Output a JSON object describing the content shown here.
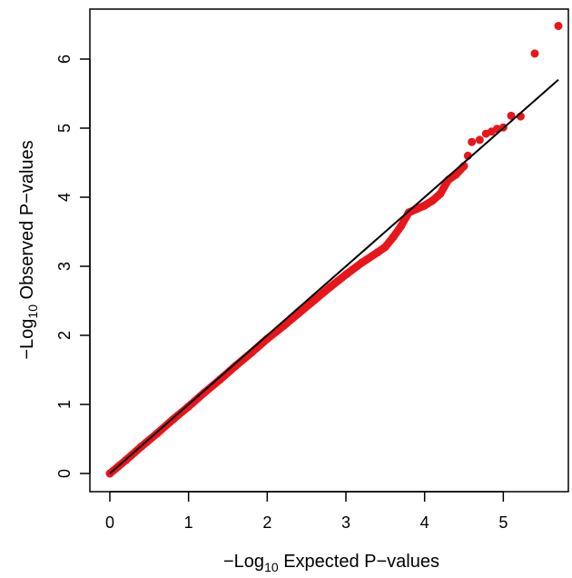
{
  "chart_data": {
    "type": "scatter",
    "xlabel_prefix": "−Log",
    "xlabel_sub": "10",
    "xlabel_suffix": " Expected P−values",
    "ylabel_prefix": "−Log",
    "ylabel_sub": "10",
    "ylabel_suffix": " Observed P−values",
    "xlim": [
      0,
      5.75
    ],
    "ylim": [
      0,
      6.5
    ],
    "xticks": [
      0,
      1,
      2,
      3,
      4,
      5
    ],
    "yticks": [
      0,
      1,
      2,
      3,
      4,
      5,
      6
    ],
    "point_color": "#e8161b",
    "line_color": "#000000",
    "reference_line": {
      "x": [
        0,
        5.7
      ],
      "y": [
        0,
        5.7
      ]
    },
    "grid": false,
    "legend": "none",
    "points": [
      {
        "x": 0.0,
        "y": 0.0
      },
      {
        "x": 0.2,
        "y": 0.19
      },
      {
        "x": 0.4,
        "y": 0.39
      },
      {
        "x": 0.6,
        "y": 0.58
      },
      {
        "x": 0.8,
        "y": 0.78
      },
      {
        "x": 1.0,
        "y": 0.97
      },
      {
        "x": 1.2,
        "y": 1.17
      },
      {
        "x": 1.4,
        "y": 1.36
      },
      {
        "x": 1.6,
        "y": 1.56
      },
      {
        "x": 1.8,
        "y": 1.75
      },
      {
        "x": 2.0,
        "y": 1.95
      },
      {
        "x": 2.2,
        "y": 2.13
      },
      {
        "x": 2.4,
        "y": 2.32
      },
      {
        "x": 2.6,
        "y": 2.51
      },
      {
        "x": 2.8,
        "y": 2.7
      },
      {
        "x": 3.0,
        "y": 2.88
      },
      {
        "x": 3.2,
        "y": 3.05
      },
      {
        "x": 3.4,
        "y": 3.2
      },
      {
        "x": 3.5,
        "y": 3.28
      },
      {
        "x": 3.6,
        "y": 3.42
      },
      {
        "x": 3.7,
        "y": 3.58
      },
      {
        "x": 3.8,
        "y": 3.78
      },
      {
        "x": 3.9,
        "y": 3.83
      },
      {
        "x": 4.0,
        "y": 3.88
      },
      {
        "x": 4.1,
        "y": 3.95
      },
      {
        "x": 4.2,
        "y": 4.05
      },
      {
        "x": 4.3,
        "y": 4.25
      },
      {
        "x": 4.4,
        "y": 4.33
      },
      {
        "x": 4.5,
        "y": 4.45
      },
      {
        "x": 4.55,
        "y": 4.6
      },
      {
        "x": 4.6,
        "y": 4.8
      },
      {
        "x": 4.7,
        "y": 4.83
      },
      {
        "x": 4.78,
        "y": 4.92
      },
      {
        "x": 4.85,
        "y": 4.95
      },
      {
        "x": 4.92,
        "y": 4.99
      },
      {
        "x": 5.0,
        "y": 5.01
      },
      {
        "x": 5.1,
        "y": 5.18
      },
      {
        "x": 5.22,
        "y": 5.17
      },
      {
        "x": 5.4,
        "y": 6.08
      },
      {
        "x": 5.7,
        "y": 6.48
      }
    ]
  }
}
